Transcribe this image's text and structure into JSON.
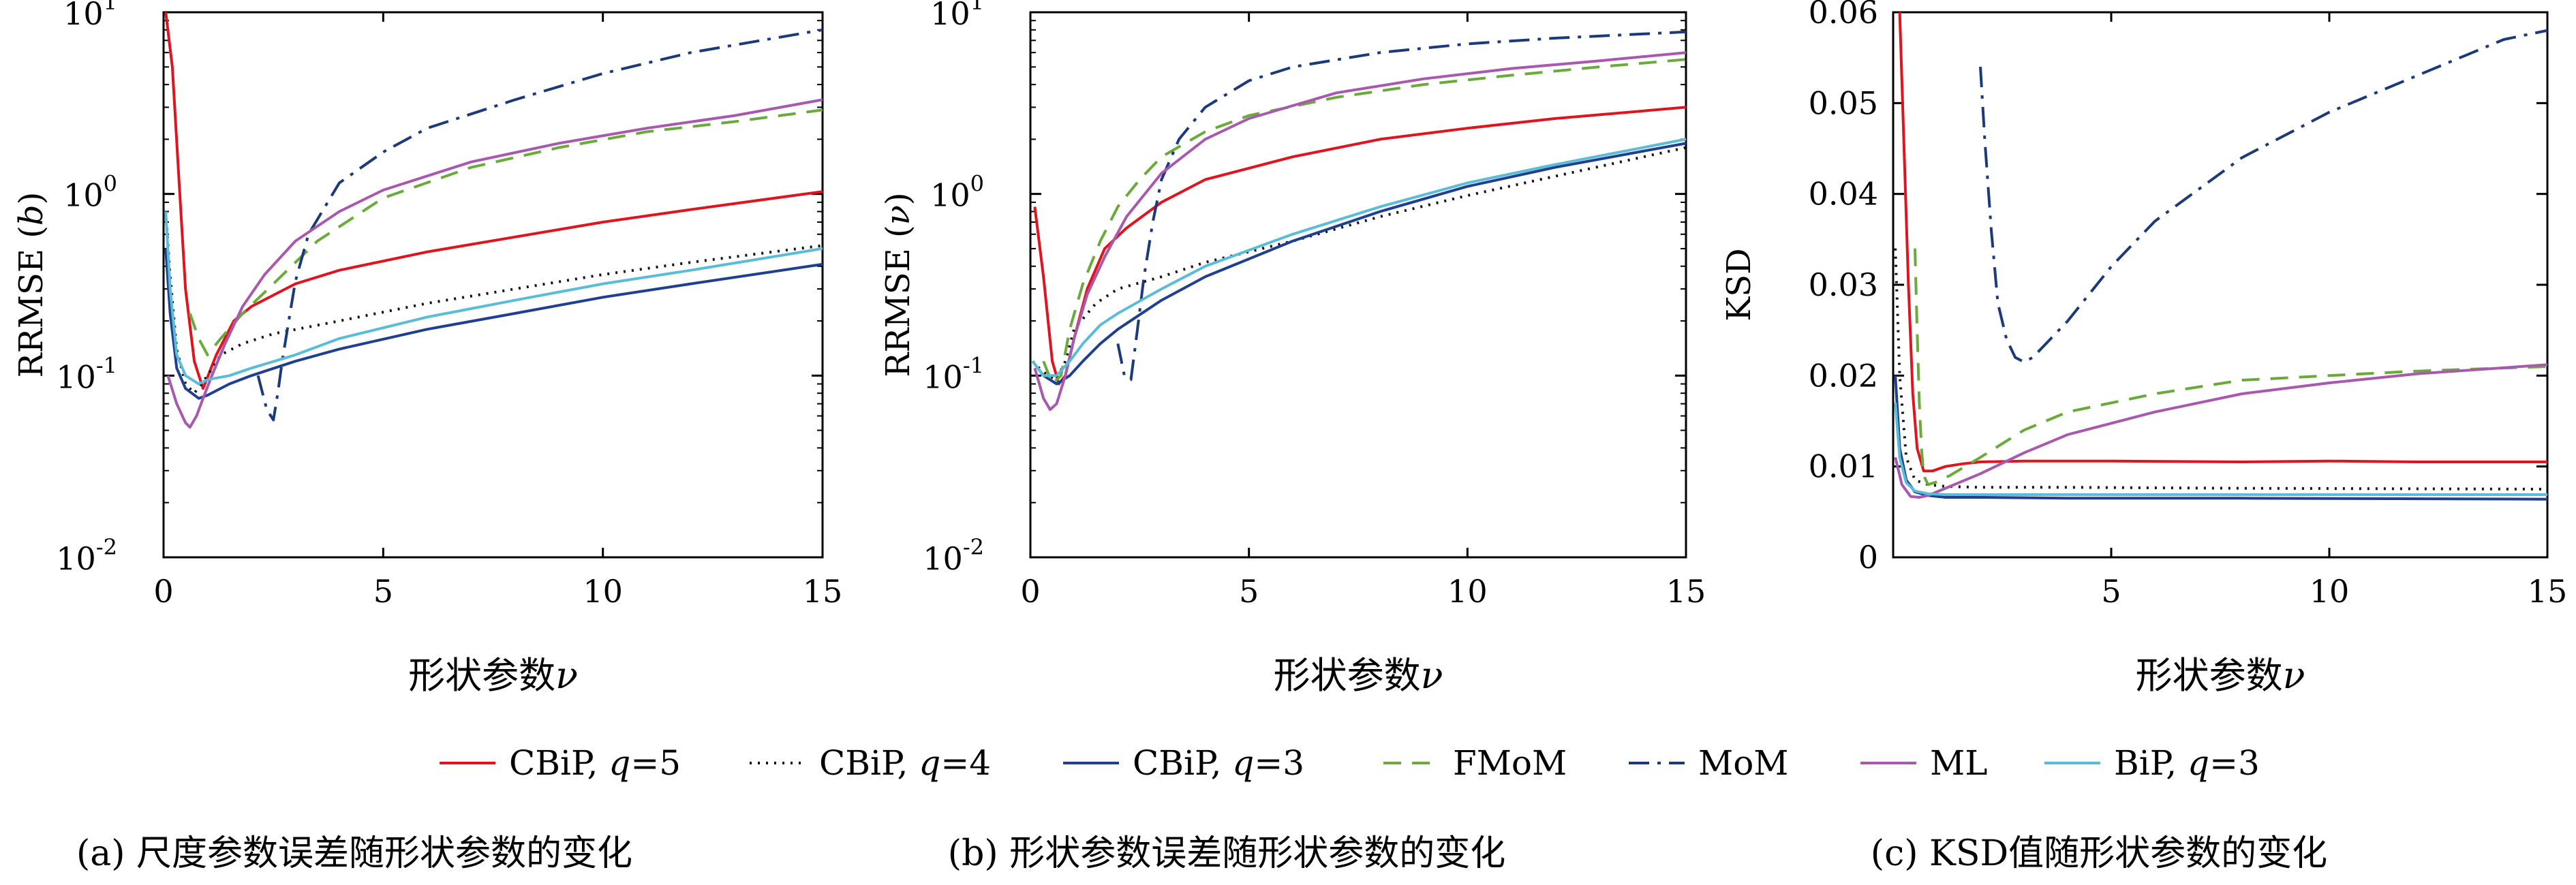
{
  "legend": [
    {
      "key": "cbip5",
      "label": "CBiP, ",
      "param": "q",
      "eq": "=5",
      "color": "#e0141e",
      "dash": "",
      "width": 4
    },
    {
      "key": "cbip4",
      "label": "CBiP, ",
      "param": "q",
      "eq": "=4",
      "color": "#111111",
      "dash": "3 9",
      "width": 4
    },
    {
      "key": "cbip3",
      "label": "CBiP, ",
      "param": "q",
      "eq": "=3",
      "color": "#1f3f8f",
      "dash": "",
      "width": 4
    },
    {
      "key": "fmom",
      "label": "FMoM",
      "param": "",
      "eq": "",
      "color": "#6aaa3a",
      "dash": "26 16",
      "width": 4
    },
    {
      "key": "mom",
      "label": "MoM",
      "param": "",
      "eq": "",
      "color": "#1c3a7a",
      "dash": "30 12 5 12",
      "width": 4
    },
    {
      "key": "ml",
      "label": "ML",
      "param": "",
      "eq": "",
      "color": "#a858ad",
      "dash": "",
      "width": 4
    },
    {
      "key": "bip3",
      "label": "BiP, ",
      "param": "q",
      "eq": "=3",
      "color": "#5bbcd8",
      "dash": "",
      "width": 4
    }
  ],
  "chart_data": [
    {
      "type": "line",
      "caption": "(a) 尺度参数误差随形状参数的变化",
      "xlabel": "形状参数",
      "xlabel_sym": "ν",
      "ylabel": "RRMSE (",
      "ylabel_sym": "b",
      "ylabel_end": ")",
      "yscale": "log",
      "xlim": [
        0,
        15
      ],
      "ylim": [
        0.01,
        10
      ],
      "xticks": [
        "0",
        "5",
        "10",
        "15"
      ],
      "yticks": [
        {
          "base": "10",
          "exp": "-2"
        },
        {
          "base": "10",
          "exp": "-1"
        },
        {
          "base": "10",
          "exp": "0"
        },
        {
          "base": "10",
          "exp": "1"
        }
      ],
      "series": [
        {
          "key": "cbip5",
          "x": [
            0.05,
            0.2,
            0.35,
            0.5,
            0.7,
            0.9,
            1.2,
            1.6,
            2,
            3,
            4,
            6,
            8,
            10,
            12,
            15
          ],
          "y": [
            10,
            5,
            1.2,
            0.3,
            0.12,
            0.085,
            0.13,
            0.2,
            0.24,
            0.32,
            0.38,
            0.48,
            0.58,
            0.7,
            0.82,
            1.03
          ]
        },
        {
          "key": "cbip4",
          "x": [
            0.05,
            0.15,
            0.3,
            0.5,
            0.7,
            1,
            1.3,
            1.8,
            2.5,
            4,
            6,
            8,
            10,
            12,
            15
          ],
          "y": [
            0.8,
            0.35,
            0.14,
            0.09,
            0.08,
            0.1,
            0.13,
            0.15,
            0.17,
            0.2,
            0.25,
            0.3,
            0.36,
            0.42,
            0.52
          ]
        },
        {
          "key": "cbip3",
          "x": [
            0.05,
            0.15,
            0.3,
            0.5,
            0.8,
            1,
            1.5,
            2,
            3,
            4,
            6,
            8,
            10,
            12,
            15
          ],
          "y": [
            0.5,
            0.22,
            0.11,
            0.085,
            0.075,
            0.078,
            0.09,
            0.1,
            0.12,
            0.14,
            0.18,
            0.22,
            0.27,
            0.32,
            0.41
          ]
        },
        {
          "key": "fmom",
          "x": [
            0.6,
            0.8,
            1,
            1.3,
            1.8,
            2.5,
            3.5,
            5,
            7,
            9,
            11,
            13,
            15
          ],
          "y": [
            0.22,
            0.16,
            0.13,
            0.16,
            0.22,
            0.32,
            0.55,
            0.95,
            1.4,
            1.8,
            2.2,
            2.5,
            2.9
          ]
        },
        {
          "key": "mom",
          "x": [
            2.15,
            2.35,
            2.5,
            2.6,
            2.7,
            2.85,
            3,
            3.3,
            4,
            5,
            6,
            8,
            10,
            12,
            15
          ],
          "y": [
            0.1,
            0.065,
            0.057,
            0.08,
            0.12,
            0.2,
            0.33,
            0.6,
            1.15,
            1.7,
            2.3,
            3.3,
            4.6,
            6,
            8
          ]
        },
        {
          "key": "ml",
          "x": [
            0.1,
            0.3,
            0.5,
            0.6,
            0.75,
            0.9,
            1.1,
            1.4,
            1.8,
            2.3,
            3,
            4,
            5,
            7,
            9,
            11,
            13,
            15
          ],
          "y": [
            0.1,
            0.07,
            0.055,
            0.052,
            0.06,
            0.075,
            0.1,
            0.15,
            0.24,
            0.36,
            0.55,
            0.8,
            1.05,
            1.5,
            1.9,
            2.3,
            2.7,
            3.3
          ]
        },
        {
          "key": "bip3",
          "x": [
            0.05,
            0.15,
            0.3,
            0.5,
            0.8,
            1,
            1.5,
            2,
            3,
            4,
            6,
            8,
            10,
            12,
            15
          ],
          "y": [
            0.8,
            0.3,
            0.13,
            0.1,
            0.09,
            0.095,
            0.1,
            0.11,
            0.13,
            0.16,
            0.21,
            0.26,
            0.32,
            0.38,
            0.5
          ]
        }
      ]
    },
    {
      "type": "line",
      "caption": "(b) 形状参数误差随形状参数的变化",
      "xlabel": "形状参数",
      "xlabel_sym": "ν",
      "ylabel": "RRMSE (",
      "ylabel_sym": "ν",
      "ylabel_end": ")",
      "yscale": "log",
      "xlim": [
        0,
        15
      ],
      "ylim": [
        0.01,
        10
      ],
      "xticks": [
        "0",
        "5",
        "10",
        "15"
      ],
      "yticks": [
        {
          "base": "10",
          "exp": "-2"
        },
        {
          "base": "10",
          "exp": "-1"
        },
        {
          "base": "10",
          "exp": "0"
        },
        {
          "base": "10",
          "exp": "1"
        }
      ],
      "series": [
        {
          "key": "cbip5",
          "x": [
            0.1,
            0.3,
            0.5,
            0.65,
            0.8,
            1,
            1.3,
            1.7,
            2.2,
            3,
            4,
            6,
            8,
            10,
            12,
            15
          ],
          "y": [
            0.85,
            0.35,
            0.12,
            0.09,
            0.1,
            0.16,
            0.3,
            0.5,
            0.65,
            0.9,
            1.2,
            1.6,
            2,
            2.3,
            2.6,
            3
          ]
        },
        {
          "key": "cbip4",
          "x": [
            0.05,
            0.2,
            0.4,
            0.6,
            0.8,
            1,
            1.5,
            2,
            3,
            4,
            6,
            8,
            10,
            12,
            15
          ],
          "y": [
            0.12,
            0.11,
            0.1,
            0.095,
            0.12,
            0.18,
            0.25,
            0.3,
            0.35,
            0.42,
            0.55,
            0.75,
            0.98,
            1.25,
            1.8
          ]
        },
        {
          "key": "cbip3",
          "x": [
            0.05,
            0.3,
            0.6,
            0.9,
            1.2,
            1.6,
            2,
            3,
            4,
            6,
            8,
            10,
            12,
            15
          ],
          "y": [
            0.12,
            0.1,
            0.09,
            0.1,
            0.12,
            0.15,
            0.18,
            0.26,
            0.35,
            0.55,
            0.8,
            1.1,
            1.4,
            1.9
          ]
        },
        {
          "key": "fmom",
          "x": [
            0.3,
            0.5,
            0.7,
            0.9,
            1.2,
            1.6,
            2,
            2.5,
            3,
            4,
            5,
            7,
            9,
            11,
            13,
            15
          ],
          "y": [
            0.12,
            0.09,
            0.1,
            0.18,
            0.32,
            0.55,
            0.85,
            1.2,
            1.6,
            2.2,
            2.7,
            3.4,
            4,
            4.5,
            5,
            5.5
          ]
        },
        {
          "key": "mom",
          "x": [
            2,
            2.15,
            2.3,
            2.45,
            2.6,
            2.8,
            3,
            3.4,
            4,
            5,
            6,
            8,
            10,
            12,
            15
          ],
          "y": [
            0.15,
            0.1,
            0.095,
            0.18,
            0.35,
            0.7,
            1.2,
            2,
            3,
            4.2,
            5,
            6,
            6.7,
            7.2,
            7.8
          ]
        },
        {
          "key": "ml",
          "x": [
            0.1,
            0.3,
            0.45,
            0.6,
            0.8,
            1,
            1.3,
            1.7,
            2.2,
            3,
            4,
            5,
            7,
            9,
            11,
            13,
            15
          ],
          "y": [
            0.11,
            0.075,
            0.065,
            0.07,
            0.1,
            0.16,
            0.28,
            0.45,
            0.75,
            1.3,
            2,
            2.6,
            3.6,
            4.3,
            4.9,
            5.4,
            6
          ]
        },
        {
          "key": "bip3",
          "x": [
            0.05,
            0.3,
            0.6,
            0.9,
            1.2,
            1.6,
            2,
            3,
            4,
            6,
            8,
            10,
            12,
            15
          ],
          "y": [
            0.12,
            0.1,
            0.1,
            0.12,
            0.15,
            0.19,
            0.22,
            0.3,
            0.4,
            0.6,
            0.85,
            1.15,
            1.45,
            2
          ]
        }
      ]
    },
    {
      "type": "line",
      "caption": "(c) KSD值随形状参数的变化",
      "xlabel": "形状参数",
      "xlabel_sym": "ν",
      "ylabel": "KSD",
      "ylabel_sym": "",
      "ylabel_end": "",
      "yscale": "linear",
      "xlim": [
        0,
        15
      ],
      "ylim": [
        0,
        0.06
      ],
      "xticks": [
        "",
        "5",
        "10",
        "15"
      ],
      "yticks": [
        "0",
        "0.01",
        "0.02",
        "0.03",
        "0.04",
        "0.05",
        "0.06"
      ],
      "series": [
        {
          "key": "cbip5",
          "x": [
            0.15,
            0.25,
            0.35,
            0.45,
            0.55,
            0.7,
            0.9,
            1.2,
            1.6,
            2,
            3,
            5,
            8,
            10,
            12,
            15
          ],
          "y": [
            0.06,
            0.045,
            0.03,
            0.018,
            0.012,
            0.0095,
            0.0095,
            0.01,
            0.0103,
            0.0105,
            0.0106,
            0.0106,
            0.0105,
            0.0106,
            0.0105,
            0.0105
          ]
        },
        {
          "key": "cbip4",
          "x": [
            0.05,
            0.15,
            0.3,
            0.5,
            0.8,
            1.2,
            2,
            4,
            8,
            15
          ],
          "y": [
            0.034,
            0.02,
            0.011,
            0.0085,
            0.008,
            0.0078,
            0.0077,
            0.0077,
            0.0076,
            0.0075
          ]
        },
        {
          "key": "cbip3",
          "x": [
            0.05,
            0.15,
            0.3,
            0.5,
            0.8,
            1.2,
            2,
            4,
            8,
            15
          ],
          "y": [
            0.02,
            0.012,
            0.0085,
            0.0072,
            0.0068,
            0.0066,
            0.0066,
            0.0065,
            0.0065,
            0.0064
          ]
        },
        {
          "key": "fmom",
          "x": [
            0.5,
            0.55,
            0.6,
            0.65,
            0.7,
            0.8,
            1,
            1.3,
            2,
            3,
            4,
            6,
            8,
            10,
            12,
            15
          ],
          "y": [
            0.034,
            0.025,
            0.017,
            0.012,
            0.009,
            0.008,
            0.0083,
            0.009,
            0.011,
            0.014,
            0.016,
            0.018,
            0.0195,
            0.02,
            0.0205,
            0.021
          ]
        },
        {
          "key": "mom",
          "x": [
            2,
            2.1,
            2.25,
            2.4,
            2.6,
            2.8,
            3,
            3.2,
            3.5,
            4,
            5,
            6,
            8,
            10,
            12,
            14,
            15
          ],
          "y": [
            0.054,
            0.046,
            0.036,
            0.028,
            0.024,
            0.022,
            0.0215,
            0.022,
            0.0235,
            0.026,
            0.032,
            0.037,
            0.044,
            0.049,
            0.053,
            0.057,
            0.058
          ]
        },
        {
          "key": "ml",
          "x": [
            0.05,
            0.2,
            0.4,
            0.6,
            0.8,
            1,
            1.3,
            2,
            3,
            4,
            6,
            8,
            10,
            12,
            15
          ],
          "y": [
            0.011,
            0.008,
            0.0067,
            0.0066,
            0.0068,
            0.0072,
            0.0078,
            0.0092,
            0.0115,
            0.0135,
            0.016,
            0.018,
            0.0192,
            0.0202,
            0.0212
          ]
        },
        {
          "key": "bip3",
          "x": [
            0.05,
            0.15,
            0.3,
            0.5,
            0.8,
            1.2,
            2,
            4,
            8,
            15
          ],
          "y": [
            0.017,
            0.011,
            0.0082,
            0.0073,
            0.007,
            0.0069,
            0.0069,
            0.0069,
            0.0069,
            0.0069
          ]
        }
      ]
    }
  ]
}
